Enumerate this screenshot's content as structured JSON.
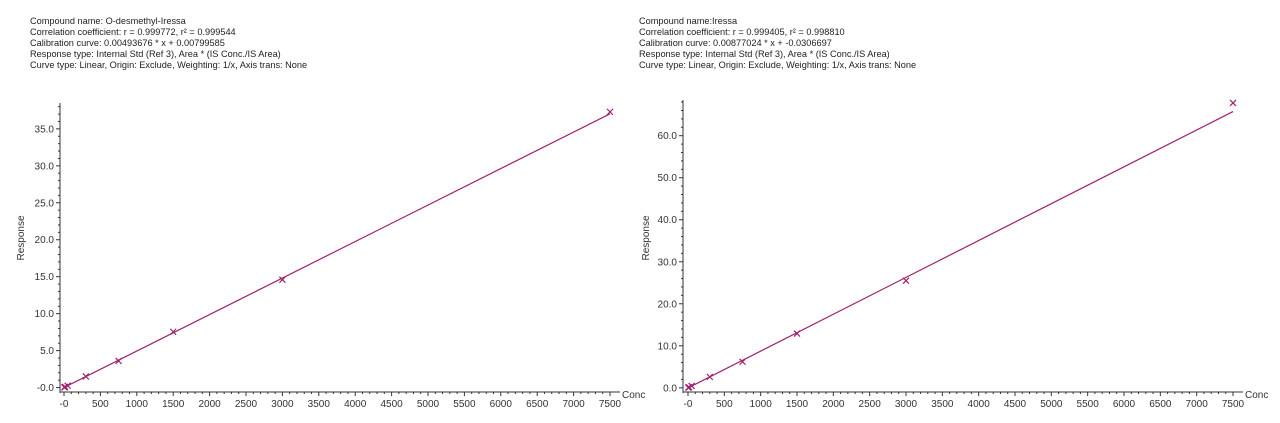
{
  "colors": {
    "line": "#a0206e",
    "axis": "#333333"
  },
  "chart_data": [
    {
      "type": "scatter",
      "compound_name": "Compound name: O-desmethyl-Iressa",
      "correlation": "Correlation coefficient: r = 0.999772, r² = 0.999544",
      "calibration": "Calibration curve: 0.00493676 * x + 0.00799585",
      "response_type": "Response type: Internal Std (Ref 3), Area * (IS Conc./IS Area)",
      "curve_type": "Curve type: Linear, Origin: Exclude, Weighting: 1/x, Axis trans: None",
      "xlabel": "Conc",
      "ylabel": "Response",
      "xlim": [
        -20,
        7550
      ],
      "ylim": [
        -0.6,
        38.5
      ],
      "x_ticks": [
        0,
        500,
        1000,
        1500,
        2000,
        2500,
        3000,
        3500,
        4000,
        4500,
        5000,
        5500,
        6000,
        6500,
        7000,
        7500
      ],
      "x_tick_labels": [
        "-0",
        "500",
        "1000",
        "1500",
        "2000",
        "2500",
        "3000",
        "3500",
        "4000",
        "4500",
        "5000",
        "5500",
        "6000",
        "6500",
        "7000",
        "7500"
      ],
      "y_ticks": [
        0,
        5,
        10,
        15,
        20,
        25,
        30,
        35
      ],
      "y_tick_labels": [
        "-0.0",
        "5.0",
        "10.0",
        "15.0",
        "20.0",
        "25.0",
        "30.0",
        "35.0"
      ],
      "fit": {
        "slope": 0.00493676,
        "intercept": 0.00799585
      },
      "points": [
        {
          "x": 5,
          "y": 0.03
        },
        {
          "x": 15,
          "y": 0.08
        },
        {
          "x": 50,
          "y": 0.25
        },
        {
          "x": 300,
          "y": 1.5
        },
        {
          "x": 750,
          "y": 3.6
        },
        {
          "x": 1500,
          "y": 7.55
        },
        {
          "x": 3000,
          "y": 14.6
        },
        {
          "x": 7500,
          "y": 37.3
        }
      ]
    },
    {
      "type": "scatter",
      "compound_name": "Compound name:Iressa",
      "correlation": "Correlation coefficient: r = 0.999405, r² = 0.998810",
      "calibration": "Calibration curve: 0.00877024 * x + -0.0306697",
      "response_type": "Response type: Internal Std (Ref 3), Area * (IS Conc./IS Area)",
      "curve_type": "Curve type: Linear, Origin: Exclude, Weighting: 1/x, Axis trans: None",
      "xlabel": "Conc",
      "ylabel": "Response",
      "xlim": [
        -20,
        7550
      ],
      "ylim": [
        -1,
        68.5
      ],
      "x_ticks": [
        0,
        500,
        1000,
        1500,
        2000,
        2500,
        3000,
        3500,
        4000,
        4500,
        5000,
        5500,
        6000,
        6500,
        7000,
        7500
      ],
      "x_tick_labels": [
        "-0",
        "500",
        "1000",
        "1500",
        "2000",
        "2500",
        "3000",
        "3500",
        "4000",
        "4500",
        "5000",
        "5500",
        "6000",
        "6500",
        "7000",
        "7500"
      ],
      "y_ticks": [
        0,
        10,
        20,
        30,
        40,
        50,
        60
      ],
      "y_tick_labels": [
        "0.0",
        "10.0",
        "20.0",
        "30.0",
        "40.0",
        "50.0",
        "60.0"
      ],
      "fit": {
        "slope": 0.00877024,
        "intercept": -0.0306697
      },
      "points": [
        {
          "x": 5,
          "y": 0.05
        },
        {
          "x": 15,
          "y": 0.13
        },
        {
          "x": 50,
          "y": 0.45
        },
        {
          "x": 300,
          "y": 2.6
        },
        {
          "x": 750,
          "y": 6.2
        },
        {
          "x": 1500,
          "y": 12.9
        },
        {
          "x": 3000,
          "y": 25.5
        },
        {
          "x": 7500,
          "y": 67.8
        }
      ]
    }
  ]
}
